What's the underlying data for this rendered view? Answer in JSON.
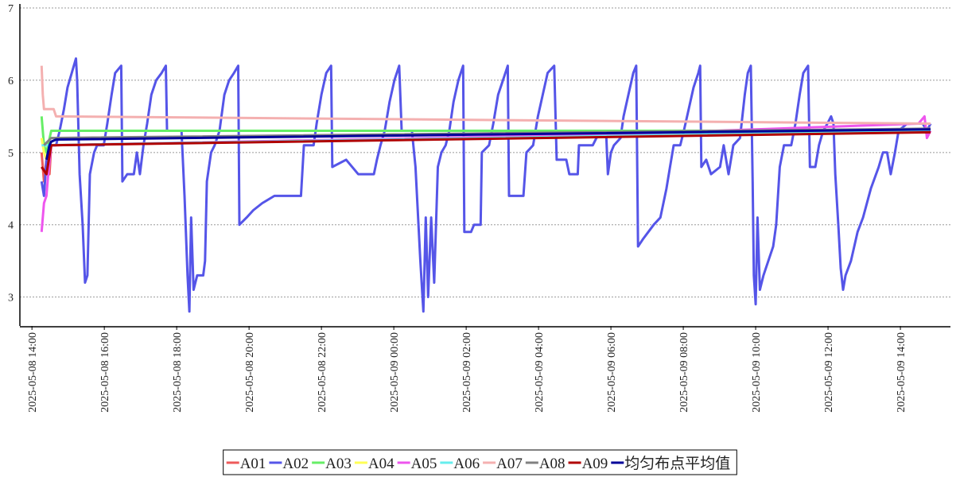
{
  "chart_data": {
    "type": "line",
    "xlim": [
      "2025-05-08 13:40",
      "2025-05-09 15:23"
    ],
    "xticks": [
      "2025-05-08 14:00",
      "2025-05-08 16:00",
      "2025-05-08 18:00",
      "2025-05-08 20:00",
      "2025-05-08 22:00",
      "2025-05-09 00:00",
      "2025-05-09 02:00",
      "2025-05-09 04:00",
      "2025-05-09 06:00",
      "2025-05-09 08:00",
      "2025-05-09 10:00",
      "2025-05-09 12:00",
      "2025-05-09 14:00"
    ],
    "ylim": [
      2.6,
      7
    ],
    "yticks": [
      3,
      4,
      5,
      6,
      7
    ],
    "grid": true,
    "legend": "bottom",
    "series": [
      {
        "name": "A01",
        "color": "#ee5a5a",
        "x": [
          "2025-05-08 14:16",
          "2025-05-08 14:20",
          "2025-05-08 14:24",
          "2025-05-08 14:29",
          "2025-05-08 14:32",
          "2025-05-09 14:44",
          "2025-05-09 14:50"
        ],
        "values": [
          5.0,
          4.6,
          4.9,
          4.7,
          5.1,
          5.3,
          5.3
        ]
      },
      {
        "name": "A02",
        "color": "#5555e8",
        "x": [
          "2025-05-08 14:16",
          "2025-05-08 14:20",
          "2025-05-08 14:24",
          "2025-05-08 14:29",
          "2025-05-08 14:40",
          "2025-05-08 14:46",
          "2025-05-08 14:53",
          "2025-05-08 14:59",
          "2025-05-08 15:06",
          "2025-05-08 15:13",
          "2025-05-08 15:15",
          "2025-05-08 15:19",
          "2025-05-08 15:24",
          "2025-05-08 15:28",
          "2025-05-08 15:32",
          "2025-05-08 15:36",
          "2025-05-08 15:43",
          "2025-05-08 15:48",
          "2025-05-08 15:59",
          "2025-05-08 16:05",
          "2025-05-08 16:12",
          "2025-05-08 16:18",
          "2025-05-08 16:28",
          "2025-05-08 16:30",
          "2025-05-08 16:38",
          "2025-05-08 16:49",
          "2025-05-08 16:54",
          "2025-05-08 16:59",
          "2025-05-08 17:05",
          "2025-05-08 17:11",
          "2025-05-08 17:18",
          "2025-05-08 17:26",
          "2025-05-08 17:35",
          "2025-05-08 17:42",
          "2025-05-08 17:44",
          "2025-05-08 18:08",
          "2025-05-08 18:13",
          "2025-05-08 18:18",
          "2025-05-08 18:21",
          "2025-05-08 18:24",
          "2025-05-08 18:28",
          "2025-05-08 18:34",
          "2025-05-08 18:44",
          "2025-05-08 18:47",
          "2025-05-08 18:50",
          "2025-05-08 18:57",
          "2025-05-08 19:03",
          "2025-05-08 19:11",
          "2025-05-08 19:19",
          "2025-05-08 19:27",
          "2025-05-08 19:35",
          "2025-05-08 19:42",
          "2025-05-08 19:44",
          "2025-05-08 19:56",
          "2025-05-08 20:07",
          "2025-05-08 20:22",
          "2025-05-08 20:42",
          "2025-05-08 21:26",
          "2025-05-08 21:31",
          "2025-05-08 21:47",
          "2025-05-08 21:52",
          "2025-05-08 22:00",
          "2025-05-08 22:08",
          "2025-05-08 22:16",
          "2025-05-08 22:18",
          "2025-05-08 22:41",
          "2025-05-08 23:01",
          "2025-05-08 23:27",
          "2025-05-08 23:32",
          "2025-05-08 23:38",
          "2025-05-08 23:45",
          "2025-05-08 23:53",
          "2025-05-09 00:01",
          "2025-05-09 00:09",
          "2025-05-09 00:13",
          "2025-05-09 00:30",
          "2025-05-09 00:36",
          "2025-05-09 00:44",
          "2025-05-09 00:49",
          "2025-05-09 00:53",
          "2025-05-09 00:57",
          "2025-05-09 01:02",
          "2025-05-09 01:07",
          "2025-05-09 01:13",
          "2025-05-09 01:19",
          "2025-05-09 01:26",
          "2025-05-09 01:32",
          "2025-05-09 01:39",
          "2025-05-09 01:47",
          "2025-05-09 01:55",
          "2025-05-09 01:57",
          "2025-05-09 02:08",
          "2025-05-09 02:13",
          "2025-05-09 02:24",
          "2025-05-09 02:26",
          "2025-05-09 02:38",
          "2025-05-09 02:45",
          "2025-05-09 02:53",
          "2025-05-09 03:01",
          "2025-05-09 03:09",
          "2025-05-09 03:11",
          "2025-05-09 03:35",
          "2025-05-09 03:40",
          "2025-05-09 03:51",
          "2025-05-09 03:59",
          "2025-05-09 04:07",
          "2025-05-09 04:15",
          "2025-05-09 04:26",
          "2025-05-09 04:30",
          "2025-05-09 04:46",
          "2025-05-09 04:51",
          "2025-05-09 05:05",
          "2025-05-09 05:07",
          "2025-05-09 05:30",
          "2025-05-09 05:36",
          "2025-05-09 05:47",
          "2025-05-09 05:52",
          "2025-05-09 05:55",
          "2025-05-09 06:00",
          "2025-05-09 06:05",
          "2025-05-09 06:16",
          "2025-05-09 06:21",
          "2025-05-09 06:29",
          "2025-05-09 06:37",
          "2025-05-09 06:42",
          "2025-05-09 06:45",
          "2025-05-09 06:53",
          "2025-05-09 07:02",
          "2025-05-09 07:11",
          "2025-05-09 07:22",
          "2025-05-09 07:32",
          "2025-05-09 07:38",
          "2025-05-09 07:44",
          "2025-05-09 07:55",
          "2025-05-09 08:01",
          "2025-05-09 08:09",
          "2025-05-09 08:17",
          "2025-05-09 08:25",
          "2025-05-09 08:28",
          "2025-05-09 08:30",
          "2025-05-09 08:38",
          "2025-05-09 08:46",
          "2025-05-09 09:01",
          "2025-05-09 09:07",
          "2025-05-09 09:15",
          "2025-05-09 09:23",
          "2025-05-09 09:34",
          "2025-05-09 09:42",
          "2025-05-09 09:47",
          "2025-05-09 09:52",
          "2025-05-09 09:55",
          "2025-05-09 09:57",
          "2025-05-09 10:00",
          "2025-05-09 10:03",
          "2025-05-09 10:07",
          "2025-05-09 10:13",
          "2025-05-09 10:21",
          "2025-05-09 10:29",
          "2025-05-09 10:34",
          "2025-05-09 10:40",
          "2025-05-09 10:47",
          "2025-05-09 10:59",
          "2025-05-09 11:06",
          "2025-05-09 11:13",
          "2025-05-09 11:19",
          "2025-05-09 11:27",
          "2025-05-09 11:30",
          "2025-05-09 11:39",
          "2025-05-09 11:45",
          "2025-05-09 11:52",
          "2025-05-09 11:59",
          "2025-05-09 12:05",
          "2025-05-09 12:09",
          "2025-05-09 12:12",
          "2025-05-09 12:17",
          "2025-05-09 12:21",
          "2025-05-09 12:25",
          "2025-05-09 12:29",
          "2025-05-09 12:38",
          "2025-05-09 12:49",
          "2025-05-09 12:58",
          "2025-05-09 13:11",
          "2025-05-09 13:24",
          "2025-05-09 13:31",
          "2025-05-09 13:38",
          "2025-05-09 13:44",
          "2025-05-09 13:51",
          "2025-05-09 13:57",
          "2025-05-09 14:11",
          "2025-05-09 14:37",
          "2025-05-09 14:44",
          "2025-05-09 14:50"
        ],
        "values": [
          4.6,
          4.4,
          4.9,
          5.1,
          5.1,
          5.3,
          5.6,
          5.9,
          6.1,
          6.3,
          6.0,
          4.7,
          4.0,
          3.2,
          3.3,
          4.7,
          5.0,
          5.1,
          5.1,
          5.4,
          5.8,
          6.1,
          6.2,
          4.6,
          4.7,
          4.7,
          5.0,
          4.7,
          5.1,
          5.4,
          5.8,
          6.0,
          6.1,
          6.2,
          5.3,
          5.3,
          4.4,
          3.3,
          2.8,
          4.1,
          3.1,
          3.3,
          3.3,
          3.5,
          4.6,
          5.0,
          5.1,
          5.3,
          5.8,
          6.0,
          6.1,
          6.2,
          4.0,
          4.1,
          4.2,
          4.3,
          4.4,
          4.4,
          5.1,
          5.1,
          5.4,
          5.8,
          6.1,
          6.2,
          4.8,
          4.9,
          4.7,
          4.7,
          4.9,
          5.1,
          5.3,
          5.7,
          6.0,
          6.2,
          5.3,
          5.3,
          4.8,
          3.5,
          2.8,
          4.1,
          3.0,
          4.1,
          3.2,
          4.8,
          5.0,
          5.1,
          5.3,
          5.7,
          6.0,
          6.2,
          3.9,
          3.9,
          4.0,
          4.0,
          5.0,
          5.1,
          5.4,
          5.8,
          6.0,
          6.2,
          4.4,
          4.4,
          5.0,
          5.1,
          5.5,
          5.8,
          6.1,
          6.2,
          4.9,
          4.9,
          4.7,
          4.7,
          5.1,
          5.1,
          5.2,
          5.3,
          5.3,
          4.7,
          5.0,
          5.1,
          5.2,
          5.5,
          5.8,
          6.1,
          6.2,
          3.7,
          3.8,
          3.9,
          4.0,
          4.1,
          4.5,
          4.8,
          5.1,
          5.1,
          5.3,
          5.6,
          5.9,
          6.1,
          6.2,
          4.8,
          4.9,
          4.7,
          4.8,
          5.1,
          4.7,
          5.1,
          5.2,
          5.8,
          6.1,
          6.2,
          4.6,
          3.3,
          2.9,
          4.1,
          3.1,
          3.3,
          3.5,
          3.7,
          4.0,
          4.8,
          5.1,
          5.1,
          5.4,
          5.8,
          6.1,
          6.2,
          4.8,
          4.8,
          5.1,
          5.3,
          5.4,
          5.5,
          5.4,
          4.7,
          4.0,
          3.4,
          3.1,
          3.3,
          3.5,
          3.9,
          4.1,
          4.5,
          4.8,
          5.0,
          5.0,
          4.7,
          5.0,
          5.3,
          5.4,
          5.4,
          5.3,
          5.4
        ]
      },
      {
        "name": "A03",
        "color": "#66ee66",
        "x": [
          "2025-05-08 14:16",
          "2025-05-08 14:20",
          "2025-05-08 14:24",
          "2025-05-08 14:32",
          "2025-05-09 14:50"
        ],
        "values": [
          5.5,
          5.1,
          5.0,
          5.3,
          5.3
        ]
      },
      {
        "name": "A04",
        "color": "#ffff55",
        "x": [
          "2025-05-08 14:16",
          "2025-05-08 14:20",
          "2025-05-08 14:24"
        ],
        "values": [
          5.2,
          5.0,
          4.9
        ]
      },
      {
        "name": "A05",
        "color": "#ee55ee",
        "x": [
          "2025-05-08 14:16",
          "2025-05-08 14:20",
          "2025-05-08 14:24",
          "2025-05-08 14:27",
          "2025-05-08 14:32",
          "2025-05-09 06:00",
          "2025-05-09 14:30",
          "2025-05-09 14:40",
          "2025-05-09 14:44",
          "2025-05-09 14:50"
        ],
        "values": [
          3.9,
          4.3,
          4.4,
          4.7,
          5.1,
          5.25,
          5.4,
          5.5,
          5.2,
          5.3
        ]
      },
      {
        "name": "A06",
        "color": "#66eeee",
        "x": [
          "2025-05-08 14:16",
          "2025-05-09 14:50"
        ],
        "values": [
          5.1,
          5.3
        ]
      },
      {
        "name": "A07",
        "color": "#f4b0b0",
        "x": [
          "2025-05-08 14:16",
          "2025-05-08 14:18",
          "2025-05-08 14:20",
          "2025-05-08 14:36",
          "2025-05-08 14:40",
          "2025-05-09 14:50"
        ],
        "values": [
          6.2,
          5.8,
          5.6,
          5.6,
          5.5,
          5.4
        ]
      },
      {
        "name": "A08",
        "color": "#808080",
        "x": [
          "2025-05-08 14:20",
          "2025-05-08 14:32",
          "2025-05-09 14:50"
        ],
        "values": [
          5.1,
          5.2,
          5.33
        ]
      },
      {
        "name": "A09",
        "color": "#b00000",
        "x": [
          "2025-05-08 14:16",
          "2025-05-08 14:24",
          "2025-05-08 14:32",
          "2025-05-09 14:50"
        ],
        "values": [
          4.8,
          4.7,
          5.1,
          5.28
        ]
      },
      {
        "name": "均匀布点平均值",
        "color": "#000099",
        "x": [
          "2025-05-08 14:24",
          "2025-05-08 14:29",
          "2025-05-08 14:32",
          "2025-05-08 14:40",
          "2025-05-09 14:50"
        ],
        "values": [
          4.9,
          5.1,
          5.15,
          5.18,
          5.32
        ]
      }
    ]
  }
}
